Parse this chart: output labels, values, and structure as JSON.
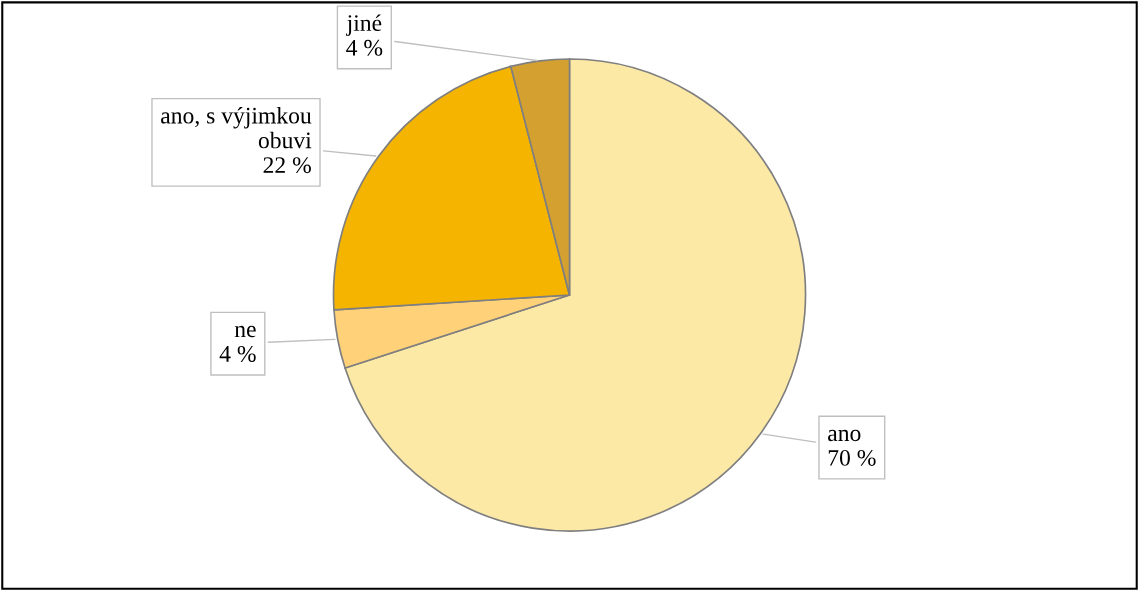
{
  "chart_data": {
    "type": "pie",
    "categories": [
      "ano",
      "ne",
      "ano, s výjimkou obuvi",
      "jiné"
    ],
    "values": [
      70,
      4,
      22,
      4
    ],
    "value_labels": [
      "70 %",
      "4 %",
      "22 %",
      "4 %"
    ],
    "colors": [
      "#fde9a6",
      "#ffd27a",
      "#f5b400",
      "#d4a030"
    ],
    "legend": false
  }
}
